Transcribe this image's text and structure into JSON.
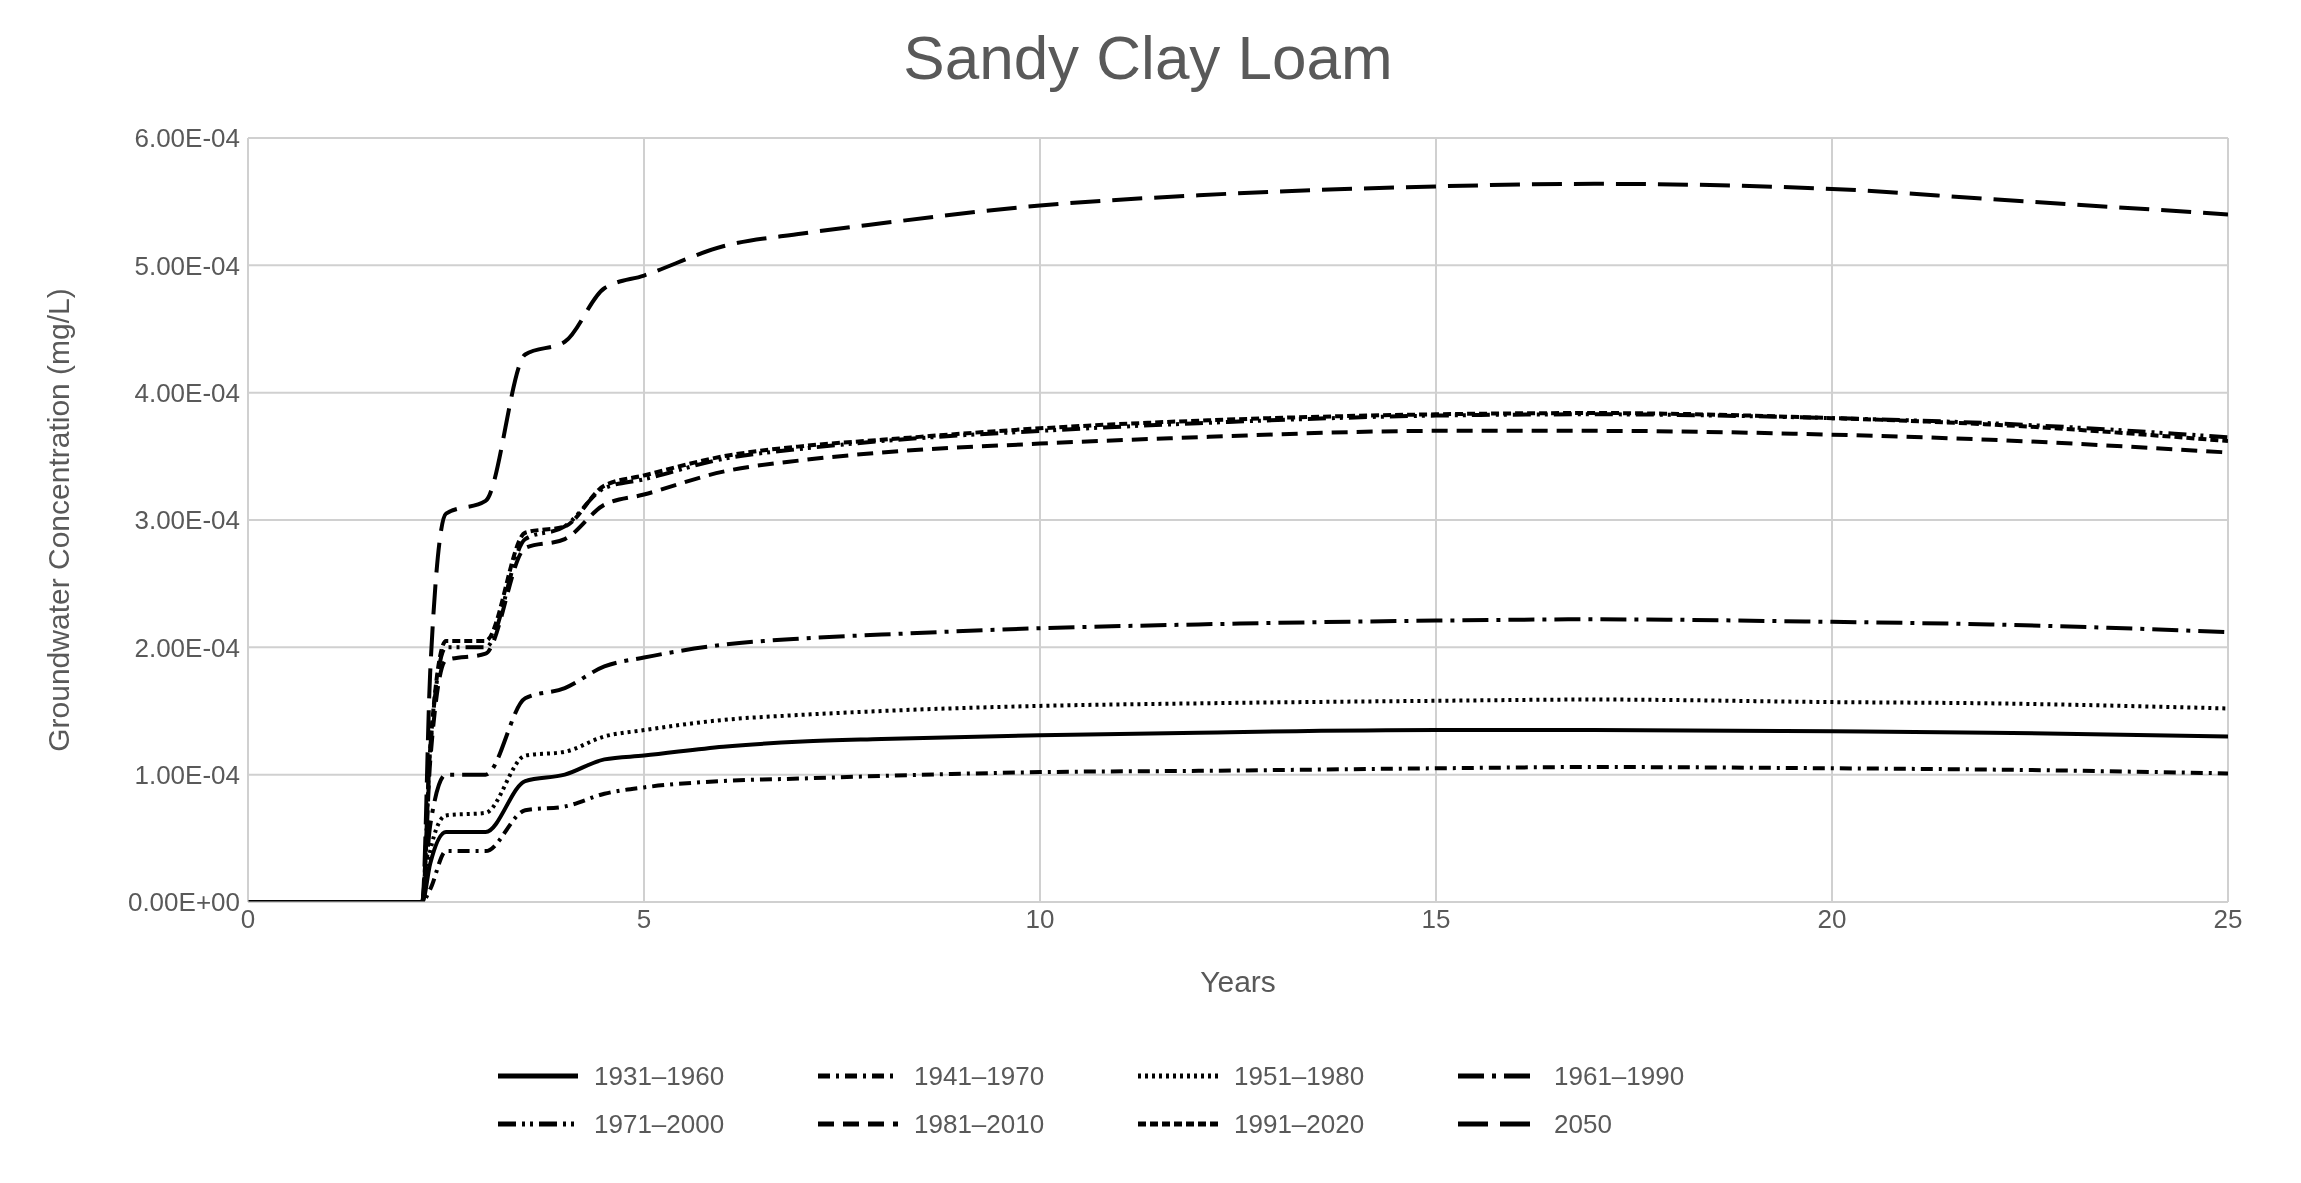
{
  "chart_data": {
    "type": "line",
    "title": "Sandy Clay Loam",
    "xlabel": "Years",
    "ylabel": "Groundwater Concentration (mg/L)",
    "x": [
      0,
      2,
      2.2,
      2.3,
      2.5,
      3,
      3.5,
      4,
      4.5,
      5,
      6,
      7,
      8,
      10,
      12,
      15,
      17,
      20,
      22,
      25
    ],
    "xlim": [
      0,
      25
    ],
    "xticks": [
      0,
      5,
      10,
      15,
      20,
      25
    ],
    "ylim": [
      0,
      0.0006
    ],
    "yticks": [
      {
        "value": 0,
        "label": "0.00E+00"
      },
      {
        "value": 0.0001,
        "label": "1.00E-04"
      },
      {
        "value": 0.0002,
        "label": "2.00E-04"
      },
      {
        "value": 0.0003,
        "label": "3.00E-04"
      },
      {
        "value": 0.0004,
        "label": "4.00E-04"
      },
      {
        "value": 0.0005,
        "label": "5.00E-04"
      },
      {
        "value": 0.0006,
        "label": "6.00E-04"
      }
    ],
    "grid": true,
    "legend": "bottom",
    "marker": "none",
    "series": [
      {
        "name": "1931–1960",
        "color": "#000000",
        "line_style": "solid",
        "values": [
          0,
          0,
          0,
          3e-05,
          5.5e-05,
          5.5e-05,
          9.5e-05,
          0.0001,
          0.000112,
          0.000115,
          0.000122,
          0.000126,
          0.000128,
          0.000131,
          0.000133,
          0.000135,
          0.000135,
          0.000134,
          0.000133,
          0.00013
        ]
      },
      {
        "name": "1941–1970",
        "color": "#000000",
        "line_style": "dashdot",
        "values": [
          0,
          0,
          0,
          1e-05,
          4e-05,
          4e-05,
          7.2e-05,
          7.5e-05,
          8.5e-05,
          9e-05,
          9.5e-05,
          9.7e-05,
          9.9e-05,
          0.000102,
          0.000103,
          0.000105,
          0.000106,
          0.000105,
          0.000104,
          0.000101
        ]
      },
      {
        "name": "1951–1980",
        "color": "#000000",
        "line_style": "dotted",
        "values": [
          0,
          0,
          0,
          4e-05,
          6.8e-05,
          7e-05,
          0.000115,
          0.000118,
          0.00013,
          0.000135,
          0.000143,
          0.000147,
          0.00015,
          0.000154,
          0.000156,
          0.000158,
          0.000159,
          0.000157,
          0.000156,
          0.000152
        ]
      },
      {
        "name": "1961–1990",
        "color": "#000000",
        "line_style": "longdashdot",
        "values": [
          0,
          0,
          0,
          6e-05,
          0.0001,
          0.0001,
          0.00016,
          0.000168,
          0.000185,
          0.000192,
          0.000202,
          0.000207,
          0.00021,
          0.000215,
          0.000218,
          0.000221,
          0.000222,
          0.00022,
          0.000218,
          0.000212
        ]
      },
      {
        "name": "1971–2000",
        "color": "#000000",
        "line_style": "dashdotdot",
        "values": [
          0,
          0,
          0,
          0.00012,
          0.0002,
          0.0002,
          0.000285,
          0.000295,
          0.000325,
          0.000332,
          0.000348,
          0.000356,
          0.000362,
          0.00037,
          0.000376,
          0.000382,
          0.000383,
          0.00038,
          0.000376,
          0.000365
        ]
      },
      {
        "name": "1981–2010",
        "color": "#000000",
        "line_style": "dashed",
        "values": [
          0,
          0,
          0,
          0.00011,
          0.00019,
          0.000195,
          0.000278,
          0.000285,
          0.000312,
          0.00032,
          0.000338,
          0.000347,
          0.000353,
          0.00036,
          0.000365,
          0.00037,
          0.00037,
          0.000367,
          0.000363,
          0.000353
        ]
      },
      {
        "name": "1991–2020",
        "color": "#000000",
        "line_style": "shortdash",
        "values": [
          0,
          0,
          0,
          0.00012,
          0.000205,
          0.000205,
          0.00029,
          0.000295,
          0.000327,
          0.000335,
          0.00035,
          0.000358,
          0.000363,
          0.000372,
          0.000378,
          0.000383,
          0.000384,
          0.00038,
          0.000375,
          0.000362
        ]
      },
      {
        "name": "2050",
        "color": "#000000",
        "line_style": "longdash",
        "values": [
          0,
          0,
          0,
          0.00018,
          0.000305,
          0.000315,
          0.00043,
          0.00044,
          0.000482,
          0.000492,
          0.000515,
          0.000525,
          0.000533,
          0.000547,
          0.000555,
          0.000562,
          0.000564,
          0.00056,
          0.000552,
          0.00054
        ]
      }
    ]
  }
}
